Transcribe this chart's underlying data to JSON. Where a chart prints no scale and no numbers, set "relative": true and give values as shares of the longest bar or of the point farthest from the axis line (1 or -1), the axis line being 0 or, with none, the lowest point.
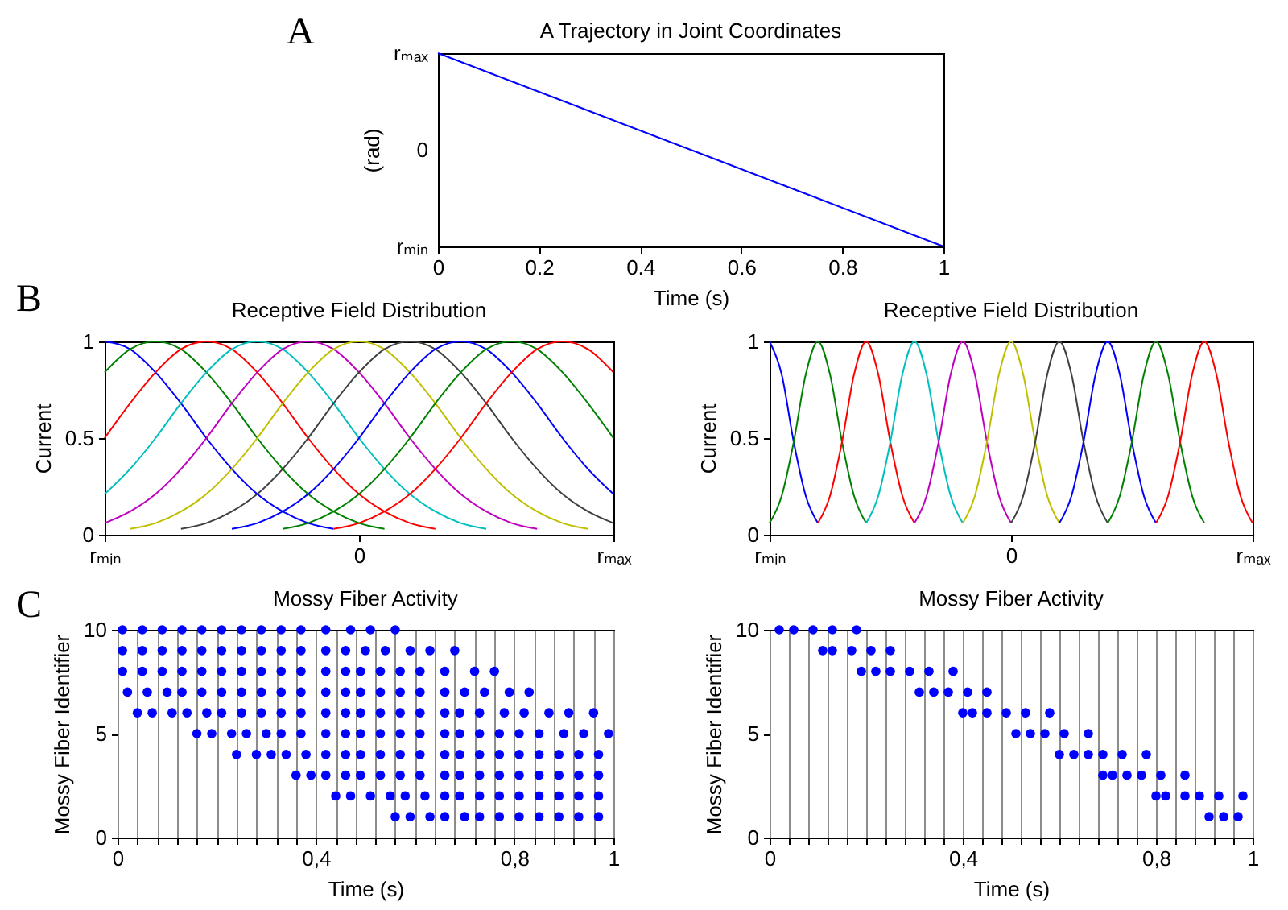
{
  "chart_data": [
    {
      "type": "line",
      "title": "A Trajectory in Joint Coordinates",
      "xlabel": "Time (s)",
      "ylabel": "(rad)",
      "relative": true,
      "annotations": [
        "A",
        "rₘₐₓ",
        "0",
        "rₘᵢₙ"
      ],
      "x": [
        0,
        1
      ],
      "xlim": [
        0,
        1
      ],
      "xticks": [
        0,
        0.2,
        0.4,
        0.6,
        0.8,
        1
      ],
      "series": [
        {
          "color": "#0000ff",
          "values": [
            1,
            0
          ]
        }
      ]
    },
    {
      "type": "line",
      "title": "Receptive Field Distribution",
      "ylabel": "Current",
      "annotations": [
        "B"
      ],
      "categories": [
        "rₘᵢₙ",
        null,
        null,
        null,
        null,
        null,
        null,
        null,
        null,
        null,
        "0",
        null,
        null,
        null,
        null,
        null,
        null,
        null,
        null,
        null,
        "rₘₐₓ"
      ],
      "ylim": [
        0,
        1
      ],
      "yticks": [
        0,
        0.5,
        1
      ],
      "series": [
        {
          "color": "#0000ff",
          "values": [
            1,
            0.96,
            0.84,
            0.68,
            0.5,
            0.34,
            0.21,
            0.12,
            0.06,
            0.03,
            null,
            null,
            null,
            null,
            null,
            null,
            null,
            null,
            null,
            null,
            null
          ]
        },
        {
          "color": "#008000",
          "values": [
            0.84,
            0.96,
            1,
            0.96,
            0.84,
            0.68,
            0.5,
            0.34,
            0.21,
            0.12,
            0.06,
            0.03,
            null,
            null,
            null,
            null,
            null,
            null,
            null,
            null,
            null
          ]
        },
        {
          "color": "#ff0000",
          "values": [
            0.5,
            0.68,
            0.84,
            0.96,
            1,
            0.96,
            0.84,
            0.68,
            0.5,
            0.34,
            0.21,
            0.12,
            0.06,
            0.03,
            null,
            null,
            null,
            null,
            null,
            null,
            null
          ]
        },
        {
          "color": "#00bfbf",
          "values": [
            0.21,
            0.34,
            0.5,
            0.68,
            0.84,
            0.96,
            1,
            0.96,
            0.84,
            0.68,
            0.5,
            0.34,
            0.21,
            0.12,
            0.06,
            0.03,
            null,
            null,
            null,
            null,
            null
          ]
        },
        {
          "color": "#bf00bf",
          "values": [
            0.06,
            0.12,
            0.21,
            0.34,
            0.5,
            0.68,
            0.84,
            0.96,
            1,
            0.96,
            0.84,
            0.68,
            0.5,
            0.34,
            0.21,
            0.12,
            0.06,
            0.03,
            null,
            null,
            null
          ]
        },
        {
          "color": "#bfbf00",
          "values": [
            null,
            0.03,
            0.06,
            0.12,
            0.21,
            0.34,
            0.5,
            0.68,
            0.84,
            0.96,
            1,
            0.96,
            0.84,
            0.68,
            0.5,
            0.34,
            0.21,
            0.12,
            0.06,
            0.03,
            null
          ]
        },
        {
          "color": "#404040",
          "values": [
            null,
            null,
            null,
            0.03,
            0.06,
            0.12,
            0.21,
            0.34,
            0.5,
            0.68,
            0.84,
            0.96,
            1,
            0.96,
            0.84,
            0.68,
            0.5,
            0.34,
            0.21,
            0.12,
            0.06
          ]
        },
        {
          "color": "#0000ff",
          "values": [
            null,
            null,
            null,
            null,
            null,
            0.03,
            0.06,
            0.12,
            0.21,
            0.34,
            0.5,
            0.68,
            0.84,
            0.96,
            1,
            0.96,
            0.84,
            0.68,
            0.5,
            0.34,
            0.21
          ]
        },
        {
          "color": "#008000",
          "values": [
            null,
            null,
            null,
            null,
            null,
            null,
            null,
            0.03,
            0.06,
            0.12,
            0.21,
            0.34,
            0.5,
            0.68,
            0.84,
            0.96,
            1,
            0.96,
            0.84,
            0.68,
            0.5
          ]
        },
        {
          "color": "#ff0000",
          "values": [
            null,
            null,
            null,
            null,
            null,
            null,
            null,
            null,
            null,
            0.03,
            0.06,
            0.12,
            0.21,
            0.34,
            0.5,
            0.68,
            0.84,
            0.96,
            1,
            0.96,
            0.84
          ]
        }
      ]
    },
    {
      "type": "line",
      "title": "Receptive Field Distribution",
      "ylabel": "Current",
      "categories": [
        "rₘᵢₙ",
        null,
        null,
        null,
        null,
        null,
        null,
        null,
        null,
        null,
        null,
        null,
        null,
        null,
        null,
        null,
        null,
        null,
        null,
        null,
        "0",
        null,
        null,
        null,
        null,
        null,
        null,
        null,
        null,
        null,
        null,
        null,
        null,
        null,
        null,
        null,
        null,
        null,
        null,
        null,
        "rₘₐₓ"
      ],
      "ylim": [
        0,
        1
      ],
      "yticks": [
        0,
        0.5,
        1
      ],
      "series": [
        {
          "color": "#0000ff",
          "values": [
            1,
            0.83,
            0.48,
            0.2,
            0.06,
            null,
            null,
            null,
            null,
            null,
            null,
            null,
            null,
            null,
            null,
            null,
            null,
            null,
            null,
            null,
            null,
            null,
            null,
            null,
            null,
            null,
            null,
            null,
            null,
            null,
            null,
            null,
            null,
            null,
            null,
            null,
            null,
            null,
            null,
            null,
            null
          ]
        },
        {
          "color": "#008000",
          "values": [
            0.06,
            0.2,
            0.48,
            0.83,
            1,
            0.83,
            0.48,
            0.2,
            0.06,
            null,
            null,
            null,
            null,
            null,
            null,
            null,
            null,
            null,
            null,
            null,
            null,
            null,
            null,
            null,
            null,
            null,
            null,
            null,
            null,
            null,
            null,
            null,
            null,
            null,
            null,
            null,
            null,
            null,
            null,
            null,
            null
          ]
        },
        {
          "color": "#ff0000",
          "values": [
            null,
            null,
            null,
            null,
            0.06,
            0.2,
            0.48,
            0.83,
            1,
            0.83,
            0.48,
            0.2,
            0.06,
            null,
            null,
            null,
            null,
            null,
            null,
            null,
            null,
            null,
            null,
            null,
            null,
            null,
            null,
            null,
            null,
            null,
            null,
            null,
            null,
            null,
            null,
            null,
            null,
            null,
            null,
            null,
            null
          ]
        },
        {
          "color": "#00bfbf",
          "values": [
            null,
            null,
            null,
            null,
            null,
            null,
            null,
            null,
            0.06,
            0.2,
            0.48,
            0.83,
            1,
            0.83,
            0.48,
            0.2,
            0.06,
            null,
            null,
            null,
            null,
            null,
            null,
            null,
            null,
            null,
            null,
            null,
            null,
            null,
            null,
            null,
            null,
            null,
            null,
            null,
            null,
            null,
            null,
            null,
            null
          ]
        },
        {
          "color": "#bf00bf",
          "values": [
            null,
            null,
            null,
            null,
            null,
            null,
            null,
            null,
            null,
            null,
            null,
            null,
            0.06,
            0.2,
            0.48,
            0.83,
            1,
            0.83,
            0.48,
            0.2,
            0.06,
            null,
            null,
            null,
            null,
            null,
            null,
            null,
            null,
            null,
            null,
            null,
            null,
            null,
            null,
            null,
            null,
            null,
            null,
            null,
            null
          ]
        },
        {
          "color": "#bfbf00",
          "values": [
            null,
            null,
            null,
            null,
            null,
            null,
            null,
            null,
            null,
            null,
            null,
            null,
            null,
            null,
            null,
            null,
            0.06,
            0.2,
            0.48,
            0.83,
            1,
            0.83,
            0.48,
            0.2,
            0.06,
            null,
            null,
            null,
            null,
            null,
            null,
            null,
            null,
            null,
            null,
            null,
            null,
            null,
            null,
            null,
            null
          ]
        },
        {
          "color": "#404040",
          "values": [
            null,
            null,
            null,
            null,
            null,
            null,
            null,
            null,
            null,
            null,
            null,
            null,
            null,
            null,
            null,
            null,
            null,
            null,
            null,
            null,
            0.06,
            0.2,
            0.48,
            0.83,
            1,
            0.83,
            0.48,
            0.2,
            0.06,
            null,
            null,
            null,
            null,
            null,
            null,
            null,
            null,
            null,
            null,
            null,
            null
          ]
        },
        {
          "color": "#0000ff",
          "values": [
            null,
            null,
            null,
            null,
            null,
            null,
            null,
            null,
            null,
            null,
            null,
            null,
            null,
            null,
            null,
            null,
            null,
            null,
            null,
            null,
            null,
            null,
            null,
            null,
            0.06,
            0.2,
            0.48,
            0.83,
            1,
            0.83,
            0.48,
            0.2,
            0.06,
            null,
            null,
            null,
            null,
            null,
            null,
            null,
            null
          ]
        },
        {
          "color": "#008000",
          "values": [
            null,
            null,
            null,
            null,
            null,
            null,
            null,
            null,
            null,
            null,
            null,
            null,
            null,
            null,
            null,
            null,
            null,
            null,
            null,
            null,
            null,
            null,
            null,
            null,
            null,
            null,
            null,
            null,
            0.06,
            0.2,
            0.48,
            0.83,
            1,
            0.83,
            0.48,
            0.2,
            0.06,
            null,
            null,
            null,
            null
          ]
        },
        {
          "color": "#ff0000",
          "values": [
            null,
            null,
            null,
            null,
            null,
            null,
            null,
            null,
            null,
            null,
            null,
            null,
            null,
            null,
            null,
            null,
            null,
            null,
            null,
            null,
            null,
            null,
            null,
            null,
            null,
            null,
            null,
            null,
            null,
            null,
            null,
            null,
            0.06,
            0.2,
            0.48,
            0.83,
            1,
            0.83,
            0.48,
            0.2,
            0.06
          ]
        }
      ]
    },
    {
      "type": "scatter",
      "title": "Mossy Fiber Activity",
      "xlabel": "Time (s)",
      "ylabel": "Mossy Fiber Identifier",
      "annotations": [
        "C"
      ],
      "marker": "circle",
      "grid": "x",
      "xlim": [
        0,
        1
      ],
      "xticks": [
        0,
        {
          "value": 0.04,
          "label": null
        },
        {
          "value": 0.08,
          "label": null
        },
        {
          "value": 0.12,
          "label": null
        },
        {
          "value": 0.16,
          "label": null
        },
        {
          "value": 0.2,
          "label": null
        },
        {
          "value": 0.24,
          "label": null
        },
        {
          "value": 0.28,
          "label": null
        },
        {
          "value": 0.32,
          "label": null
        },
        {
          "value": 0.36,
          "label": null
        },
        {
          "value": 0.4,
          "label": "0,4"
        },
        {
          "value": 0.44,
          "label": null
        },
        {
          "value": 0.48,
          "label": null
        },
        {
          "value": 0.52,
          "label": null
        },
        {
          "value": 0.56,
          "label": null
        },
        {
          "value": 0.6,
          "label": null
        },
        {
          "value": 0.64,
          "label": null
        },
        {
          "value": 0.68,
          "label": null
        },
        {
          "value": 0.72,
          "label": null
        },
        {
          "value": 0.76,
          "label": null
        },
        {
          "value": 0.8,
          "label": "0,8"
        },
        {
          "value": 0.84,
          "label": null
        },
        {
          "value": 0.88,
          "label": null
        },
        {
          "value": 0.92,
          "label": null
        },
        {
          "value": 0.96,
          "label": null
        },
        1
      ],
      "ylim": [
        0,
        10
      ],
      "yticks": [
        0,
        5,
        10
      ],
      "series": [
        {
          "color": "#0000ff",
          "x": [
            0.01,
            0.05,
            0.09,
            0.13,
            0.17,
            0.21,
            0.25,
            0.29,
            0.33,
            0.37,
            0.42,
            0.47,
            0.51,
            0.56
          ],
          "values": [
            10,
            10,
            10,
            10,
            10,
            10,
            10,
            10,
            10,
            10,
            10,
            10,
            10,
            10
          ]
        },
        {
          "color": "#0000ff",
          "x": [
            0.01,
            0.05,
            0.09,
            0.13,
            0.17,
            0.21,
            0.25,
            0.29,
            0.33,
            0.37,
            0.42,
            0.46,
            0.5,
            0.54,
            0.59,
            0.63,
            0.68
          ],
          "values": [
            9,
            9,
            9,
            9,
            9,
            9,
            9,
            9,
            9,
            9,
            9,
            9,
            9,
            9,
            9,
            9,
            9
          ]
        },
        {
          "color": "#0000ff",
          "x": [
            0.01,
            0.05,
            0.09,
            0.13,
            0.17,
            0.21,
            0.25,
            0.29,
            0.33,
            0.37,
            0.42,
            0.46,
            0.49,
            0.53,
            0.57,
            0.61,
            0.66,
            0.72,
            0.76
          ],
          "values": [
            8,
            8,
            8,
            8,
            8,
            8,
            8,
            8,
            8,
            8,
            8,
            8,
            8,
            8,
            8,
            8,
            8,
            8,
            8
          ]
        },
        {
          "color": "#0000ff",
          "x": [
            0.02,
            0.06,
            0.1,
            0.13,
            0.17,
            0.21,
            0.25,
            0.29,
            0.33,
            0.37,
            0.42,
            0.46,
            0.49,
            0.53,
            0.57,
            0.61,
            0.66,
            0.7,
            0.74,
            0.79,
            0.83
          ],
          "values": [
            7,
            7,
            7,
            7,
            7,
            7,
            7,
            7,
            7,
            7,
            7,
            7,
            7,
            7,
            7,
            7,
            7,
            7,
            7,
            7,
            7
          ]
        },
        {
          "color": "#0000ff",
          "x": [
            0.04,
            0.07,
            0.11,
            0.14,
            0.18,
            0.21,
            0.25,
            0.29,
            0.33,
            0.37,
            0.42,
            0.46,
            0.49,
            0.53,
            0.57,
            0.61,
            0.66,
            0.69,
            0.73,
            0.78,
            0.82,
            0.87,
            0.91,
            0.96
          ],
          "values": [
            6,
            6,
            6,
            6,
            6,
            6,
            6,
            6,
            6,
            6,
            6,
            6,
            6,
            6,
            6,
            6,
            6,
            6,
            6,
            6,
            6,
            6,
            6,
            6
          ]
        },
        {
          "color": "#0000ff",
          "x": [
            0.16,
            0.19,
            0.23,
            0.26,
            0.3,
            0.33,
            0.37,
            0.42,
            0.46,
            0.49,
            0.53,
            0.57,
            0.61,
            0.66,
            0.69,
            0.73,
            0.77,
            0.81,
            0.85,
            0.9,
            0.94,
            0.99
          ],
          "values": [
            5,
            5,
            5,
            5,
            5,
            5,
            5,
            5,
            5,
            5,
            5,
            5,
            5,
            5,
            5,
            5,
            5,
            5,
            5,
            5,
            5,
            5
          ]
        },
        {
          "color": "#0000ff",
          "x": [
            0.24,
            0.28,
            0.31,
            0.34,
            0.38,
            0.42,
            0.46,
            0.49,
            0.53,
            0.57,
            0.61,
            0.66,
            0.69,
            0.73,
            0.77,
            0.81,
            0.85,
            0.89,
            0.93,
            0.97
          ],
          "values": [
            4,
            4,
            4,
            4,
            4,
            4,
            4,
            4,
            4,
            4,
            4,
            4,
            4,
            4,
            4,
            4,
            4,
            4,
            4,
            4
          ]
        },
        {
          "color": "#0000ff",
          "x": [
            0.36,
            0.39,
            0.42,
            0.46,
            0.49,
            0.53,
            0.57,
            0.61,
            0.66,
            0.69,
            0.73,
            0.77,
            0.81,
            0.85,
            0.89,
            0.93,
            0.97
          ],
          "values": [
            3,
            3,
            3,
            3,
            3,
            3,
            3,
            3,
            3,
            3,
            3,
            3,
            3,
            3,
            3,
            3,
            3
          ]
        },
        {
          "color": "#0000ff",
          "x": [
            0.44,
            0.47,
            0.51,
            0.55,
            0.58,
            0.62,
            0.66,
            0.69,
            0.73,
            0.77,
            0.81,
            0.85,
            0.89,
            0.93,
            0.97
          ],
          "values": [
            2,
            2,
            2,
            2,
            2,
            2,
            2,
            2,
            2,
            2,
            2,
            2,
            2,
            2,
            2
          ]
        },
        {
          "color": "#0000ff",
          "x": [
            0.56,
            0.59,
            0.63,
            0.66,
            0.7,
            0.73,
            0.77,
            0.81,
            0.85,
            0.89,
            0.93,
            0.97
          ],
          "values": [
            1,
            1,
            1,
            1,
            1,
            1,
            1,
            1,
            1,
            1,
            1,
            1
          ]
        }
      ]
    },
    {
      "type": "scatter",
      "title": "Mossy Fiber Activity",
      "xlabel": "Time (s)",
      "ylabel": "Mossy Fiber Identifier",
      "marker": "circle",
      "grid": "x",
      "xlim": [
        0,
        1
      ],
      "xticks": [
        0,
        {
          "value": 0.04,
          "label": null
        },
        {
          "value": 0.08,
          "label": null
        },
        {
          "value": 0.12,
          "label": null
        },
        {
          "value": 0.16,
          "label": null
        },
        {
          "value": 0.2,
          "label": null
        },
        {
          "value": 0.24,
          "label": null
        },
        {
          "value": 0.28,
          "label": null
        },
        {
          "value": 0.32,
          "label": null
        },
        {
          "value": 0.36,
          "label": null
        },
        {
          "value": 0.4,
          "label": "0,4"
        },
        {
          "value": 0.44,
          "label": null
        },
        {
          "value": 0.48,
          "label": null
        },
        {
          "value": 0.52,
          "label": null
        },
        {
          "value": 0.56,
          "label": null
        },
        {
          "value": 0.6,
          "label": null
        },
        {
          "value": 0.64,
          "label": null
        },
        {
          "value": 0.68,
          "label": null
        },
        {
          "value": 0.72,
          "label": null
        },
        {
          "value": 0.76,
          "label": null
        },
        {
          "value": 0.8,
          "label": "0,8"
        },
        {
          "value": 0.84,
          "label": null
        },
        {
          "value": 0.88,
          "label": null
        },
        {
          "value": 0.92,
          "label": null
        },
        {
          "value": 0.96,
          "label": null
        },
        1
      ],
      "ylim": [
        0,
        10
      ],
      "yticks": [
        0,
        5,
        10
      ],
      "series": [
        {
          "color": "#0000ff",
          "x": [
            0.02,
            0.05,
            0.09,
            0.13,
            0.18
          ],
          "values": [
            10,
            10,
            10,
            10,
            10
          ]
        },
        {
          "color": "#0000ff",
          "x": [
            0.11,
            0.13,
            0.17,
            0.21,
            0.25
          ],
          "values": [
            9,
            9,
            9,
            9,
            9
          ]
        },
        {
          "color": "#0000ff",
          "x": [
            0.19,
            0.22,
            0.25,
            0.29,
            0.33,
            0.38
          ],
          "values": [
            8,
            8,
            8,
            8,
            8,
            8
          ]
        },
        {
          "color": "#0000ff",
          "x": [
            0.31,
            0.34,
            0.37,
            0.41,
            0.45
          ],
          "values": [
            7,
            7,
            7,
            7,
            7
          ]
        },
        {
          "color": "#0000ff",
          "x": [
            0.4,
            0.42,
            0.45,
            0.49,
            0.53,
            0.58
          ],
          "values": [
            6,
            6,
            6,
            6,
            6,
            6
          ]
        },
        {
          "color": "#0000ff",
          "x": [
            0.51,
            0.54,
            0.57,
            0.61,
            0.66
          ],
          "values": [
            5,
            5,
            5,
            5,
            5
          ]
        },
        {
          "color": "#0000ff",
          "x": [
            0.6,
            0.63,
            0.66,
            0.69,
            0.73,
            0.78
          ],
          "values": [
            4,
            4,
            4,
            4,
            4,
            4
          ]
        },
        {
          "color": "#0000ff",
          "x": [
            0.69,
            0.71,
            0.74,
            0.77,
            0.81,
            0.86
          ],
          "values": [
            3,
            3,
            3,
            3,
            3,
            3
          ]
        },
        {
          "color": "#0000ff",
          "x": [
            0.8,
            0.82,
            0.86,
            0.89,
            0.93,
            0.98
          ],
          "values": [
            2,
            2,
            2,
            2,
            2,
            2
          ]
        },
        {
          "color": "#0000ff",
          "x": [
            0.91,
            0.94,
            0.97
          ],
          "values": [
            1,
            1,
            1
          ]
        }
      ]
    }
  ]
}
